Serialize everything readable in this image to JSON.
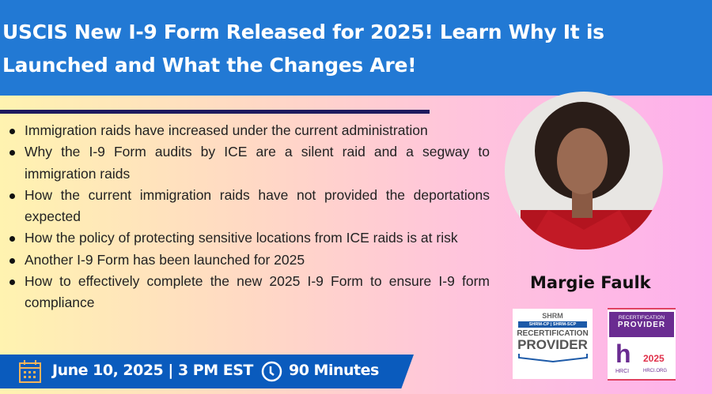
{
  "header": {
    "title": "USCIS New I-9 Form Released for 2025! Learn Why It is Launched and What the Changes Are!"
  },
  "bullets": [
    "Immigration raids have increased under the current administration",
    "Why the I-9 Form audits by ICE are a silent raid and a segway to immigration raids",
    "How the current immigration raids have not provided the deportations expected",
    "How the policy of protecting sensitive locations from ICE raids is at risk",
    "Another I-9 Form has been launched for 2025",
    "How to effectively complete the new 2025 I-9 Form to ensure I-9 form compliance"
  ],
  "banner": {
    "date": "June 10, 2025 | 3 PM EST",
    "duration": "90 Minutes",
    "calendar_icon": "calendar-icon",
    "clock_icon": "clock-icon"
  },
  "speaker": {
    "name": "Margie Faulk"
  },
  "badges": {
    "shrm": {
      "top": "SHRM",
      "sub": "SHRM-CP | SHRM-SCP",
      "line1": "RECERTIFICATION",
      "line2": "PROVIDER"
    },
    "hrci": {
      "line1": "RECERTIFICATION",
      "line2": "PROVIDER",
      "logo": "HRCI",
      "year": "2025",
      "site": "HRCI.ORG"
    }
  },
  "colors": {
    "header": "#2279d4",
    "banner": "#0a5bbd",
    "rule": "#1e1a5e",
    "calendar": "#f2b35a"
  }
}
